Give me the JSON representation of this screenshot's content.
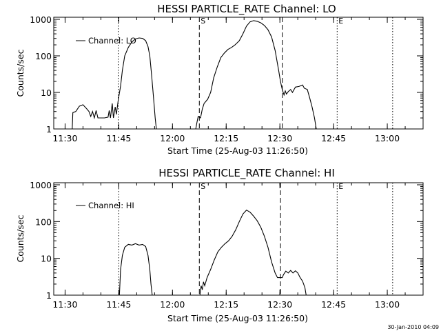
{
  "timestamp": "30-Jan-2010 04:09",
  "chart_data": [
    {
      "type": "line",
      "title": "HESSI PARTICLE_RATE Channel: LO",
      "xlabel": "Start Time (25-Aug-03 11:26:50)",
      "ylabel": "Counts/sec",
      "yscale": "log",
      "ylim": [
        1,
        1000
      ],
      "xlim": [
        "11:26:50",
        "13:10:00"
      ],
      "x_ticks": [
        "11:30",
        "11:45",
        "12:00",
        "12:15",
        "12:30",
        "12:45",
        "13:00"
      ],
      "y_ticks": [
        "1",
        "10",
        "100",
        "1000"
      ],
      "legend": {
        "position": "top-left",
        "entries": [
          "Channel: LO"
        ]
      },
      "markers": [
        {
          "label": "",
          "time": "11:44:50",
          "style": "dotted"
        },
        {
          "label": "S",
          "time": "12:07:30",
          "style": "dashed"
        },
        {
          "label": "",
          "time": "12:30:40",
          "style": "dashed"
        },
        {
          "label": "E",
          "time": "12:46:00",
          "style": "dotted"
        },
        {
          "label": "",
          "time": "13:01:30",
          "style": "dotted"
        }
      ],
      "series": [
        {
          "name": "Channel: LO",
          "segments": [
            [
              [
                "11:32:00",
                1
              ],
              [
                "11:32:10",
                2.8
              ],
              [
                "11:33:00",
                3.0
              ],
              [
                "11:34:00",
                4.2
              ],
              [
                "11:35:00",
                4.6
              ],
              [
                "11:36:00",
                3.6
              ],
              [
                "11:36:40",
                3.0
              ],
              [
                "11:37:10",
                2.2
              ],
              [
                "11:37:40",
                3.0
              ],
              [
                "11:38:10",
                2.0
              ],
              [
                "11:38:40",
                3.2
              ],
              [
                "11:39:10",
                2.0
              ],
              [
                "11:40:00",
                2.0
              ],
              [
                "11:41:00",
                2.0
              ],
              [
                "11:42:00",
                2.1
              ],
              [
                "11:42:20",
                3.2
              ],
              [
                "11:42:40",
                2.0
              ],
              [
                "11:43:10",
                5.0
              ],
              [
                "11:43:30",
                2.0
              ],
              [
                "11:44:00",
                4.0
              ],
              [
                "11:44:20",
                2.5
              ],
              [
                "11:44:50",
                6.0
              ],
              [
                "11:45:30",
                15
              ],
              [
                "11:46:00",
                40
              ],
              [
                "11:46:40",
                100
              ],
              [
                "11:47:40",
                170
              ],
              [
                "11:48:40",
                240
              ],
              [
                "11:49:40",
                290
              ],
              [
                "11:50:40",
                310
              ],
              [
                "11:51:40",
                300
              ],
              [
                "11:52:30",
                260
              ],
              [
                "11:53:10",
                180
              ],
              [
                "11:53:40",
                100
              ],
              [
                "11:54:10",
                30
              ],
              [
                "11:54:40",
                8
              ],
              [
                "11:55:10",
                2.0
              ],
              [
                "11:55:30",
                1
              ]
            ],
            [
              [
                "12:06:30",
                1
              ],
              [
                "12:06:50",
                1.5
              ],
              [
                "12:07:10",
                2.2
              ],
              [
                "12:07:50",
                2.0
              ],
              [
                "12:08:20",
                3.5
              ],
              [
                "12:08:50",
                5.0
              ],
              [
                "12:09:50",
                6.5
              ],
              [
                "12:10:40",
                10
              ],
              [
                "12:11:30",
                25
              ],
              [
                "12:12:30",
                50
              ],
              [
                "12:13:30",
                90
              ],
              [
                "12:14:30",
                120
              ],
              [
                "12:15:30",
                150
              ],
              [
                "12:16:30",
                170
              ],
              [
                "12:17:30",
                200
              ],
              [
                "12:18:40",
                260
              ],
              [
                "12:19:40",
                400
              ],
              [
                "12:20:40",
                650
              ],
              [
                "12:21:40",
                850
              ],
              [
                "12:22:40",
                920
              ],
              [
                "12:23:40",
                880
              ],
              [
                "12:24:40",
                800
              ],
              [
                "12:25:40",
                680
              ],
              [
                "12:26:40",
                520
              ],
              [
                "12:27:40",
                330
              ],
              [
                "12:28:40",
                140
              ],
              [
                "12:29:40",
                40
              ],
              [
                "12:30:10",
                20
              ],
              [
                "12:30:40",
                12
              ],
              [
                "12:31:10",
                8.5
              ],
              [
                "12:31:30",
                11
              ],
              [
                "12:31:50",
                9
              ],
              [
                "12:32:20",
                10.5
              ],
              [
                "12:33:00",
                12
              ],
              [
                "12:33:30",
                10
              ],
              [
                "12:34:20",
                14
              ],
              [
                "12:35:20",
                14.5
              ],
              [
                "12:36:20",
                16
              ],
              [
                "12:36:50",
                13
              ],
              [
                "12:37:40",
                12
              ],
              [
                "12:38:20",
                7
              ],
              [
                "12:39:00",
                4
              ],
              [
                "12:39:40",
                2.0
              ],
              [
                "12:40:10",
                1
              ]
            ]
          ]
        }
      ]
    },
    {
      "type": "line",
      "title": "HESSI PARTICLE_RATE Channel: HI",
      "xlabel": "Start Time (25-Aug-03 11:26:50)",
      "ylabel": "Counts/sec",
      "yscale": "log",
      "ylim": [
        1,
        1000
      ],
      "xlim": [
        "11:26:50",
        "13:10:00"
      ],
      "x_ticks": [
        "11:30",
        "11:45",
        "12:00",
        "12:15",
        "12:30",
        "12:45",
        "13:00"
      ],
      "y_ticks": [
        "1",
        "10",
        "100",
        "1000"
      ],
      "legend": {
        "position": "top-left",
        "entries": [
          "Channel: HI"
        ]
      },
      "markers": [
        {
          "label": "",
          "time": "11:45:00",
          "style": "dotted"
        },
        {
          "label": "S",
          "time": "12:07:30",
          "style": "dashed"
        },
        {
          "label": "",
          "time": "12:30:10",
          "style": "dashed"
        },
        {
          "label": "E",
          "time": "12:46:00",
          "style": "dotted"
        },
        {
          "label": "",
          "time": "13:01:30",
          "style": "dotted"
        }
      ],
      "series": [
        {
          "name": "Channel: HI",
          "segments": [
            [
              [
                "11:45:10",
                1
              ],
              [
                "11:45:30",
                5
              ],
              [
                "11:46:00",
                12
              ],
              [
                "11:46:40",
                20
              ],
              [
                "11:47:40",
                24
              ],
              [
                "11:48:40",
                23
              ],
              [
                "11:49:40",
                25
              ],
              [
                "11:50:40",
                23
              ],
              [
                "11:51:40",
                24
              ],
              [
                "11:52:30",
                21
              ],
              [
                "11:53:10",
                12
              ],
              [
                "11:53:40",
                5
              ],
              [
                "11:54:00",
                2
              ],
              [
                "11:54:20",
                1
              ]
            ],
            [
              [
                "12:07:40",
                1
              ],
              [
                "12:08:00",
                1.8
              ],
              [
                "12:08:20",
                1.4
              ],
              [
                "12:08:40",
                2.3
              ],
              [
                "12:09:00",
                1.8
              ],
              [
                "12:09:40",
                3
              ],
              [
                "12:10:40",
                5
              ],
              [
                "12:11:40",
                9
              ],
              [
                "12:12:40",
                15
              ],
              [
                "12:13:40",
                20
              ],
              [
                "12:14:40",
                25
              ],
              [
                "12:15:40",
                30
              ],
              [
                "12:16:40",
                40
              ],
              [
                "12:17:40",
                60
              ],
              [
                "12:18:40",
                100
              ],
              [
                "12:19:40",
                160
              ],
              [
                "12:20:40",
                205
              ],
              [
                "12:21:40",
                180
              ],
              [
                "12:22:40",
                140
              ],
              [
                "12:23:40",
                105
              ],
              [
                "12:24:40",
                70
              ],
              [
                "12:25:40",
                40
              ],
              [
                "12:26:40",
                20
              ],
              [
                "12:27:40",
                8
              ],
              [
                "12:28:40",
                4
              ],
              [
                "12:29:20",
                3
              ],
              [
                "12:30:00",
                3
              ],
              [
                "12:30:40",
                3
              ],
              [
                "12:31:00",
                3.6
              ],
              [
                "12:31:40",
                4.5
              ],
              [
                "12:32:20",
                4.0
              ],
              [
                "12:33:00",
                4.7
              ],
              [
                "12:33:40",
                4.0
              ],
              [
                "12:34:20",
                4.6
              ],
              [
                "12:35:00",
                4.0
              ],
              [
                "12:35:40",
                3.0
              ],
              [
                "12:36:20",
                2.4
              ],
              [
                "12:37:00",
                1.6
              ],
              [
                "12:37:20",
                1
              ]
            ]
          ]
        }
      ]
    }
  ]
}
